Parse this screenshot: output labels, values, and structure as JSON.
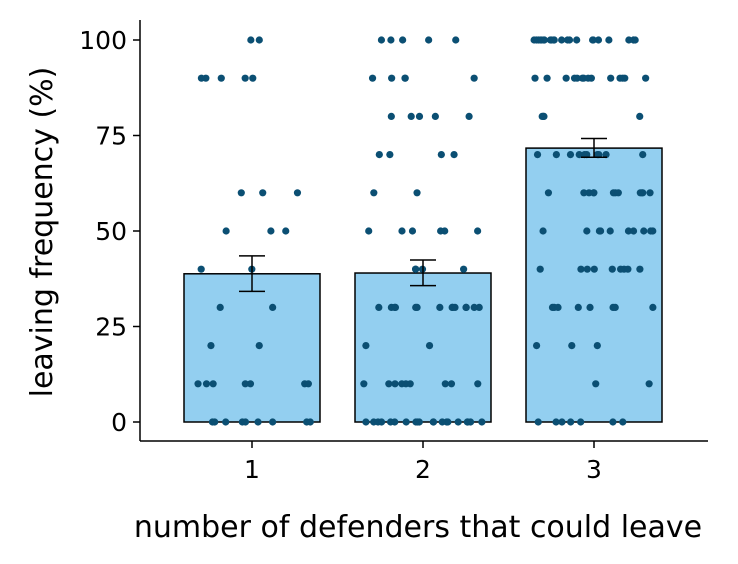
{
  "chart_data": {
    "type": "bar",
    "title": "",
    "xlabel": "number of defenders that could leave",
    "ylabel": "leaving frequency (%)",
    "categories": [
      "1",
      "2",
      "3"
    ],
    "values": [
      38.8,
      39.0,
      71.7
    ],
    "error": [
      {
        "low": 34.2,
        "high": 43.5
      },
      {
        "low": 35.7,
        "high": 42.4
      },
      {
        "low": 69.3,
        "high": 74.2
      }
    ],
    "ylim": [
      0,
      100
    ],
    "yticks": [
      0,
      25,
      50,
      75,
      100
    ],
    "grid": false,
    "legend": "none",
    "colors": {
      "bar_fill": "#93CFF0",
      "bar_stroke": "#000000",
      "point": "#0B4F73",
      "axis": "#000000"
    },
    "points": [
      {
        "category": "1",
        "values": [
          100,
          100,
          90,
          90,
          90,
          90,
          90,
          60,
          60,
          60,
          50,
          50,
          50,
          40,
          40,
          30,
          30,
          20,
          20,
          10,
          10,
          10,
          10,
          10,
          10,
          10,
          0,
          0,
          0,
          0,
          0,
          0,
          0,
          0,
          0
        ]
      },
      {
        "category": "2",
        "values": [
          100,
          100,
          100,
          100,
          100,
          90,
          90,
          90,
          90,
          90,
          80,
          80,
          80,
          80,
          80,
          70,
          70,
          70,
          70,
          60,
          60,
          50,
          50,
          50,
          50,
          50,
          50,
          40,
          40,
          40,
          40,
          30,
          30,
          30,
          30,
          30,
          30,
          30,
          30,
          30,
          30,
          30,
          30,
          30,
          30,
          20,
          20,
          10,
          10,
          10,
          10,
          10,
          10,
          10,
          10,
          10,
          0,
          0,
          0,
          0,
          0,
          0,
          0,
          0,
          0,
          0,
          0,
          0,
          0,
          0,
          0,
          0,
          0,
          0,
          0,
          0
        ]
      },
      {
        "category": "3",
        "values": [
          100,
          100,
          100,
          100,
          100,
          100,
          100,
          100,
          100,
          100,
          100,
          100,
          100,
          100,
          100,
          100,
          100,
          100,
          100,
          100,
          100,
          100,
          100,
          90,
          90,
          90,
          90,
          90,
          90,
          90,
          90,
          90,
          90,
          90,
          90,
          90,
          90,
          80,
          80,
          80,
          80,
          70,
          70,
          70,
          70,
          70,
          70,
          70,
          70,
          70,
          70,
          60,
          60,
          60,
          60,
          60,
          60,
          60,
          60,
          60,
          60,
          60,
          60,
          50,
          50,
          50,
          50,
          50,
          50,
          50,
          50,
          50,
          50,
          40,
          40,
          40,
          40,
          40,
          40,
          40,
          40,
          40,
          30,
          30,
          30,
          30,
          30,
          30,
          30,
          30,
          20,
          20,
          20,
          10,
          10,
          0,
          0,
          0,
          0,
          0,
          0,
          0
        ]
      }
    ]
  }
}
